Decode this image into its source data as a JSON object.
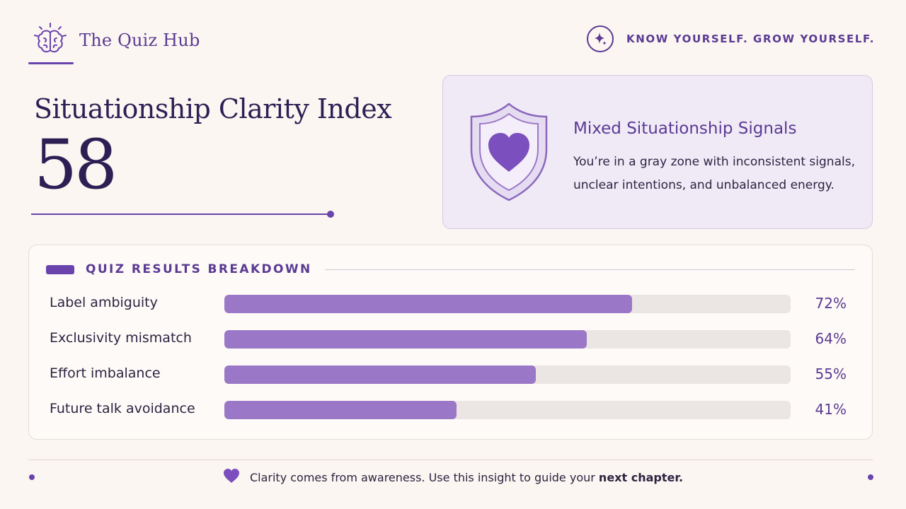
{
  "header": {
    "brand_name": "The Quiz Hub",
    "brand_icon": "brain-icon",
    "tagline": "KNOW YOURSELF. GROW YOURSELF.",
    "tagline_icon": "sparkle-icon"
  },
  "score": {
    "title": "Situationship Clarity Index",
    "value": "58"
  },
  "result": {
    "icon": "shield-heart-icon",
    "title": "Mixed Situationship Signals",
    "description": "You’re in a gray zone with inconsistent signals, unclear intentions, and unbalanced energy."
  },
  "breakdown": {
    "title": "QUIZ RESULTS BREAKDOWN",
    "rows": [
      {
        "label": "Label ambiguity",
        "value": "72%",
        "percent": 72
      },
      {
        "label": "Exclusivity mismatch",
        "value": "64%",
        "percent": 64
      },
      {
        "label": "Effort imbalance",
        "value": "55%",
        "percent": 55
      },
      {
        "label": "Future talk avoidance",
        "value": "41%",
        "percent": 41
      }
    ]
  },
  "footer": {
    "icon": "heart-icon",
    "text": "Clarity comes from awareness. Use this insight to guide your",
    "emphasis": "next chapter."
  },
  "colors": {
    "accent": "#6a43ad",
    "bar_fill": "#9b78c7",
    "bar_track": "#ebe5e3",
    "background": "#fbf6f1",
    "card": "#f0eaf7"
  }
}
